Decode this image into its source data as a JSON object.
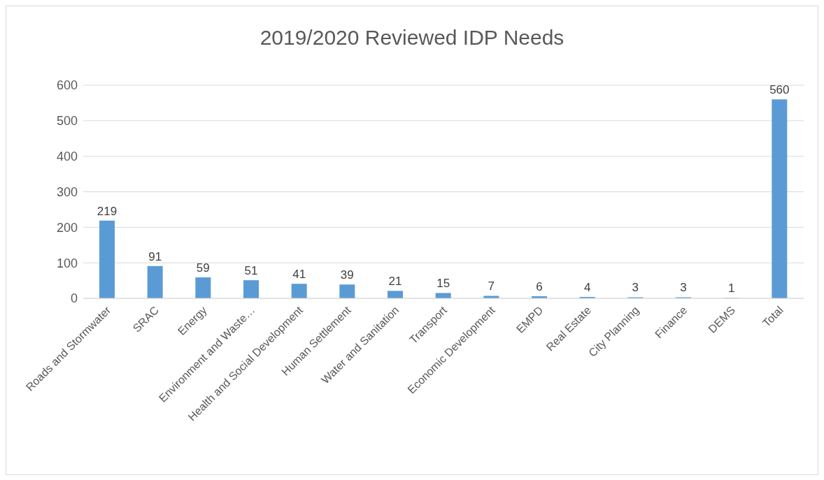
{
  "chart_data": {
    "type": "bar",
    "title": "2019/2020 Reviewed IDP Needs",
    "categories": [
      "Roads and Stormwater",
      "SRAC",
      "Energy",
      "Environment and Waste…",
      "Health and Social Development",
      "Human Settlement",
      "Water and Sanitation",
      "Transport",
      "Economic Development",
      "EMPD",
      "Real Estate",
      "City Planning",
      "Finance",
      "DEMS",
      "Total"
    ],
    "values": [
      219,
      91,
      59,
      51,
      41,
      39,
      21,
      15,
      7,
      6,
      4,
      3,
      3,
      1,
      560
    ],
    "color": "#5b9bd5",
    "ylim": [
      0,
      600
    ],
    "yticks": [
      0,
      100,
      200,
      300,
      400,
      500,
      600
    ],
    "grid": "y",
    "data_labels": true
  }
}
